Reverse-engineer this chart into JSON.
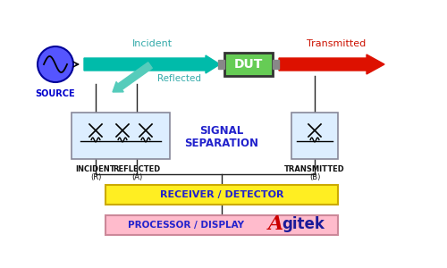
{
  "bg_color": "#ffffff",
  "source_circle_color": "#5555ff",
  "source_circle_edge": "#000099",
  "dut_box_color": "#66cc55",
  "dut_box_edge": "#333333",
  "incident_arrow_color": "#00bbaa",
  "transmitted_arrow_color": "#dd1100",
  "reflected_arrow_color": "#55ccbb",
  "signal_sep_box_color": "#ddeeff",
  "signal_sep_box_edge": "#888899",
  "receiver_box_color": "#ffee22",
  "receiver_box_edge": "#ccaa00",
  "processor_box_color": "#ffbbcc",
  "processor_box_edge": "#cc8899",
  "source_label": "SOURCE",
  "dut_label": "DUT",
  "incident_label": "Incident",
  "reflected_label": "Reflected",
  "transmitted_label": "Transmitted",
  "signal_sep_label1": "SIGNAL",
  "signal_sep_label2": "SEPARATION",
  "incident_port_label1": "INCIDENT",
  "incident_port_label2": "(R)",
  "reflected_port_label1": "REFLECTED",
  "reflected_port_label2": "(A)",
  "transmitted_port_label1": "TRANSMITTED",
  "transmitted_port_label2": "(B)",
  "receiver_label": "RECEIVER / DETECTOR",
  "processor_label": "PROCESSOR / DISPLAY",
  "source_label_color": "#0000cc",
  "incident_label_color": "#33aaaa",
  "reflected_label_color": "#33aaaa",
  "transmitted_label_color": "#cc1100",
  "signal_sep_label_color": "#2222cc",
  "port_label_color": "#111111",
  "receiver_label_color": "#2222cc",
  "processor_label_color": "#2222cc",
  "agitek_A_color": "#cc0000",
  "agitek_rest_color": "#1a1a99",
  "connector_color": "#888888",
  "line_color": "#222222"
}
